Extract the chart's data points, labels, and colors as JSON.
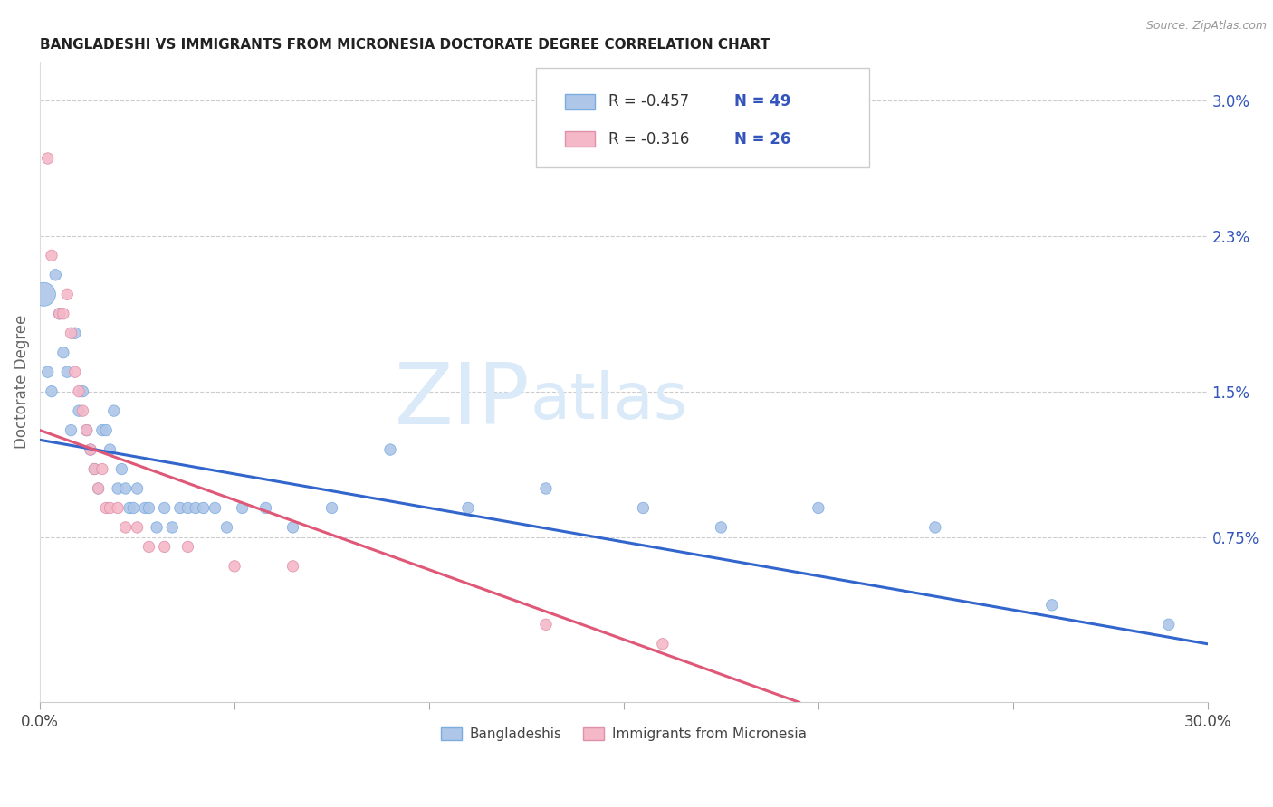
{
  "title": "BANGLADESHI VS IMMIGRANTS FROM MICRONESIA DOCTORATE DEGREE CORRELATION CHART",
  "source": "Source: ZipAtlas.com",
  "ylabel": "Doctorate Degree",
  "yaxis_labels": [
    "0.75%",
    "1.5%",
    "2.3%",
    "3.0%"
  ],
  "yaxis_values": [
    0.0075,
    0.015,
    0.023,
    0.03
  ],
  "xlim": [
    0,
    0.3
  ],
  "ylim": [
    -0.001,
    0.032
  ],
  "legend_r1": "-0.457",
  "legend_n1": "49",
  "legend_r2": "-0.316",
  "legend_n2": "26",
  "legend_label1": "Bangladeshis",
  "legend_label2": "Immigrants from Micronesia",
  "blue_color": "#aec6e8",
  "pink_color": "#f4b8c8",
  "blue_edge_color": "#7aace0",
  "pink_edge_color": "#e090a8",
  "blue_line_color": "#3366cc",
  "pink_line_color": "#e05878",
  "text_color": "#3355bb",
  "watermark_color": "#daeaf8",
  "blue_trend_x0": 0.0,
  "blue_trend_y0": 0.0125,
  "blue_trend_x1": 0.3,
  "blue_trend_y1": 0.002,
  "pink_trend_x0": 0.0,
  "pink_trend_y0": 0.013,
  "pink_trend_x1": 0.195,
  "pink_trend_y1": -0.001,
  "blue_x": [
    0.001,
    0.002,
    0.003,
    0.004,
    0.005,
    0.006,
    0.007,
    0.008,
    0.009,
    0.01,
    0.011,
    0.012,
    0.013,
    0.014,
    0.015,
    0.016,
    0.017,
    0.018,
    0.019,
    0.02,
    0.021,
    0.022,
    0.023,
    0.024,
    0.025,
    0.027,
    0.028,
    0.03,
    0.032,
    0.034,
    0.036,
    0.038,
    0.04,
    0.042,
    0.045,
    0.048,
    0.052,
    0.058,
    0.065,
    0.075,
    0.09,
    0.11,
    0.13,
    0.155,
    0.175,
    0.2,
    0.23,
    0.26,
    0.29
  ],
  "blue_y": [
    0.02,
    0.016,
    0.015,
    0.021,
    0.019,
    0.017,
    0.016,
    0.013,
    0.018,
    0.014,
    0.015,
    0.013,
    0.012,
    0.011,
    0.01,
    0.013,
    0.013,
    0.012,
    0.014,
    0.01,
    0.011,
    0.01,
    0.009,
    0.009,
    0.01,
    0.009,
    0.009,
    0.008,
    0.009,
    0.008,
    0.009,
    0.009,
    0.009,
    0.009,
    0.009,
    0.008,
    0.009,
    0.009,
    0.008,
    0.009,
    0.012,
    0.009,
    0.01,
    0.009,
    0.008,
    0.009,
    0.008,
    0.004,
    0.003
  ],
  "blue_sizes": [
    350,
    80,
    80,
    80,
    80,
    80,
    80,
    80,
    80,
    80,
    80,
    80,
    80,
    80,
    80,
    80,
    80,
    80,
    80,
    80,
    80,
    80,
    80,
    80,
    80,
    80,
    80,
    80,
    80,
    80,
    80,
    80,
    80,
    80,
    80,
    80,
    80,
    80,
    80,
    80,
    80,
    80,
    80,
    80,
    80,
    80,
    80,
    80,
    80
  ],
  "pink_x": [
    0.002,
    0.003,
    0.005,
    0.006,
    0.007,
    0.008,
    0.009,
    0.01,
    0.011,
    0.012,
    0.013,
    0.014,
    0.015,
    0.016,
    0.017,
    0.018,
    0.02,
    0.022,
    0.025,
    0.028,
    0.032,
    0.038,
    0.05,
    0.065,
    0.13,
    0.16
  ],
  "pink_y": [
    0.027,
    0.022,
    0.019,
    0.019,
    0.02,
    0.018,
    0.016,
    0.015,
    0.014,
    0.013,
    0.012,
    0.011,
    0.01,
    0.011,
    0.009,
    0.009,
    0.009,
    0.008,
    0.008,
    0.007,
    0.007,
    0.007,
    0.006,
    0.006,
    0.003,
    0.002
  ],
  "pink_sizes": [
    80,
    80,
    80,
    80,
    80,
    80,
    80,
    80,
    80,
    80,
    80,
    80,
    80,
    80,
    80,
    80,
    80,
    80,
    80,
    80,
    80,
    80,
    80,
    80,
    80,
    80
  ]
}
